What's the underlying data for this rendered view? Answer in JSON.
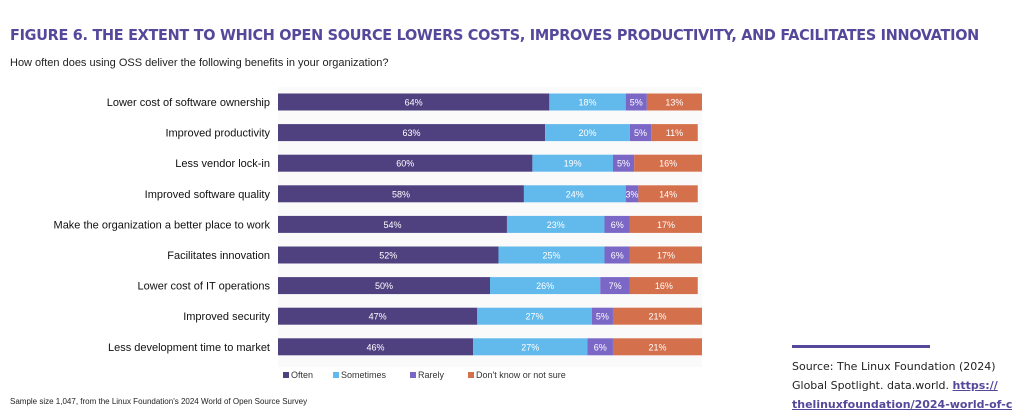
{
  "title": "FIGURE 6. THE EXTENT TO WHICH OPEN SOURCE LOWERS COSTS, IMPROVES PRODUCTIVITY, AND FACILITATES INNOVATION",
  "subtitle": "How often does using OSS deliver the following benefits in your organization?",
  "note": "Sample size 1,047, from the Linux Foundation's 2024 World of Open Source Survey",
  "source": {
    "line1": "Source: The Linux Foundation (2024)",
    "line2": "Global Spotlight. data.world.",
    "link1": "https://",
    "link2": "thelinuxfoundation/2024-world-of-c"
  },
  "chart_data": {
    "type": "bar",
    "orientation": "horizontal-stacked-100",
    "categories": [
      "Lower cost of software ownership",
      "Improved productivity",
      "Less vendor lock-in",
      "Improved software quality",
      "Make the organization a better place to work",
      "Facilitates innovation",
      "Lower cost of IT operations",
      "Improved security",
      "Less development time to market"
    ],
    "series": [
      {
        "name": "Often",
        "color": "#4f4180",
        "values": [
          64,
          63,
          60,
          58,
          54,
          52,
          50,
          47,
          46
        ]
      },
      {
        "name": "Sometimes",
        "color": "#62b9ec",
        "values": [
          18,
          20,
          19,
          24,
          23,
          25,
          26,
          27,
          27
        ]
      },
      {
        "name": "Rarely",
        "color": "#7b68c6",
        "values": [
          5,
          5,
          5,
          3,
          6,
          6,
          7,
          5,
          6
        ]
      },
      {
        "name": "Don't know or not sure",
        "color": "#d4704c",
        "values": [
          13,
          11,
          16,
          14,
          17,
          17,
          16,
          21,
          21
        ]
      }
    ],
    "legend": "bottom",
    "xlim": [
      0,
      100
    ]
  }
}
